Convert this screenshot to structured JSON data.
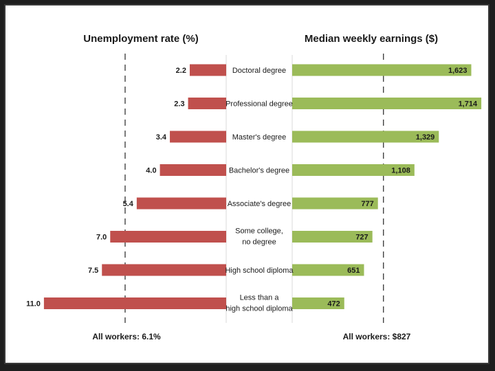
{
  "chart_data": {
    "type": "bar",
    "categories": [
      [
        "Doctoral degree"
      ],
      [
        "Professional degree"
      ],
      [
        "Master's degree"
      ],
      [
        "Bachelor's degree"
      ],
      [
        "Associate's degree"
      ],
      [
        "Some college,",
        "no degree"
      ],
      [
        "High school diploma"
      ],
      [
        "Less than a",
        "high school diploma"
      ]
    ],
    "series": [
      {
        "name": "Unemployment rate (%)",
        "values": [
          2.2,
          2.3,
          3.4,
          4.0,
          5.4,
          7.0,
          7.5,
          11.0
        ],
        "labels": [
          "2.2",
          "2.3",
          "3.4",
          "4.0",
          "5.4",
          "7.0",
          "7.5",
          "11.0"
        ],
        "color": "#c0504d",
        "reference_value": 6.1,
        "reference_label": "All workers: 6.1%"
      },
      {
        "name": "Median weekly earnings ($)",
        "values": [
          1623,
          1714,
          1329,
          1108,
          777,
          727,
          651,
          472
        ],
        "labels": [
          "1,623",
          "1,714",
          "1,329",
          "1,108",
          "777",
          "727",
          "651",
          "472"
        ],
        "color": "#9bbb59",
        "reference_value": 827,
        "reference_label": "All workers: $827"
      }
    ],
    "titles": {
      "left": "Unemployment rate (%)",
      "right": "Median weekly earnings ($)"
    }
  }
}
